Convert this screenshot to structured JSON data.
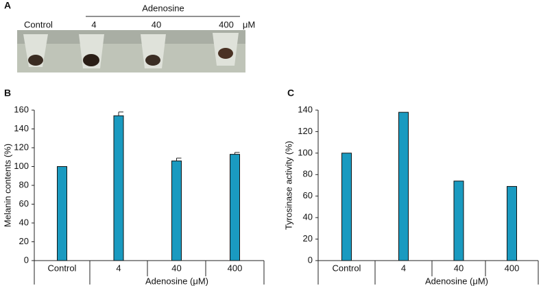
{
  "panel_a": {
    "label": "A",
    "group_label": "Adenosine",
    "columns": [
      "Control",
      "4",
      "40",
      "400"
    ],
    "unit": "μM"
  },
  "chart_data": [
    {
      "type": "bar",
      "panel_label": "B",
      "ylabel": "Melanin contents (%)",
      "xlabel": "Adenosine (μM)",
      "categories": [
        "Control",
        "4",
        "40",
        "400"
      ],
      "values": [
        100,
        154,
        106,
        113
      ],
      "errors": [
        null,
        4,
        3,
        2
      ],
      "color": "#1a9ac0",
      "ylim": [
        0,
        160
      ],
      "yticks": [
        0,
        20,
        40,
        60,
        80,
        100,
        120,
        140,
        160
      ]
    },
    {
      "type": "bar",
      "panel_label": "C",
      "ylabel": "Tyrosinase activity (%)",
      "xlabel": "Adenosine (μM)",
      "categories": [
        "Control",
        "4",
        "40",
        "400"
      ],
      "values": [
        100,
        138,
        74,
        69
      ],
      "color": "#1a9ac0",
      "ylim": [
        0,
        140
      ],
      "yticks": [
        0,
        20,
        40,
        60,
        80,
        100,
        120,
        140
      ]
    }
  ]
}
